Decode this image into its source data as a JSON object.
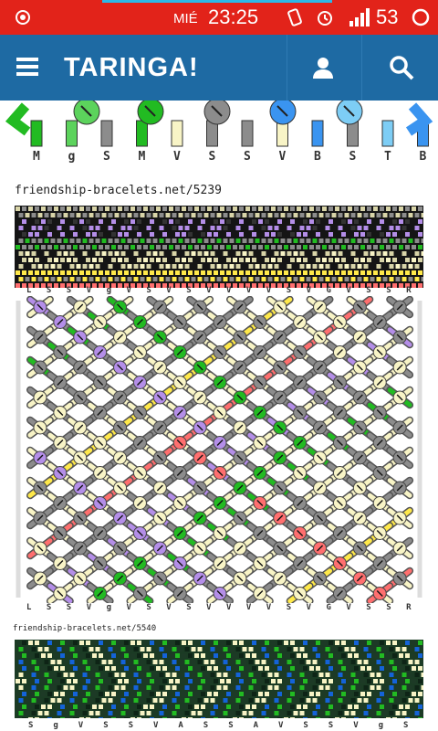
{
  "status_bar": {
    "day": "MIÉ",
    "time": "23:25",
    "battery": "53"
  },
  "app_bar": {
    "title": "TARINGA!",
    "menu_icon": "menu-icon",
    "user_icon": "user-icon",
    "search_icon": "search-icon"
  },
  "pattern_1_bottom_letters": [
    "M",
    "g",
    "S",
    "M",
    "V",
    "S",
    "S",
    "V",
    "B",
    "S",
    "T",
    "B"
  ],
  "link_1": "friendship-bracelets.net/5239",
  "pattern_2_top_letters": [
    "L",
    "S",
    "S",
    "V",
    "g",
    "V",
    "S",
    "V",
    "S",
    "V",
    "V",
    "V",
    "V",
    "S",
    "V",
    "G",
    "V",
    "S",
    "S",
    "R"
  ],
  "pattern_2_bottom_letters": [
    "L",
    "S",
    "S",
    "V",
    "g",
    "V",
    "S",
    "V",
    "S",
    "V",
    "V",
    "V",
    "V",
    "S",
    "V",
    "G",
    "V",
    "S",
    "S",
    "R"
  ],
  "link_2": "friendship-bracelets.net/5540",
  "pattern_3_letters": [
    "S",
    "g",
    "V",
    "S",
    "S",
    "V",
    "A",
    "S",
    "S",
    "A",
    "V",
    "S",
    "S",
    "V",
    "g",
    "S"
  ],
  "colors": {
    "status_red": "#e2231a",
    "appbar_blue": "#1e6aa3",
    "purple": "#b48ee8",
    "green": "#22bb22",
    "yellow": "#ffe94a",
    "red": "#ff6f6f",
    "gray": "#8c8c8c",
    "cream": "#f8f4c6",
    "black": "#222222",
    "dark_green": "#1b3b24",
    "blue": "#1463d8"
  }
}
